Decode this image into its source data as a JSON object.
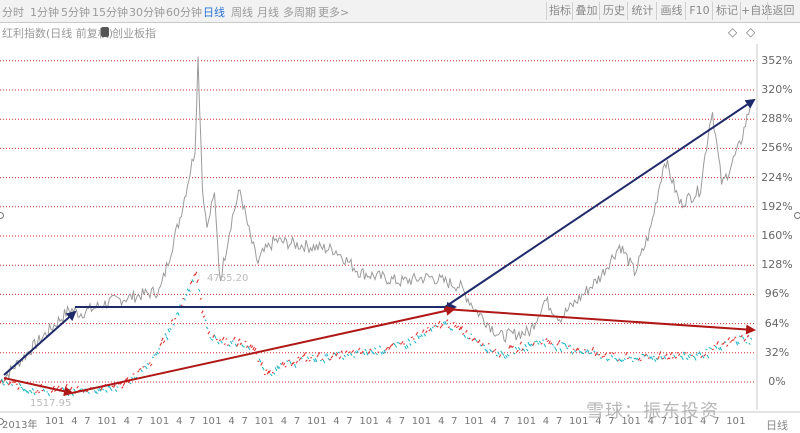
{
  "periods": [
    {
      "label": "分时",
      "active": false
    },
    {
      "label": "1分钟",
      "active": false
    },
    {
      "label": "5分钟",
      "active": false
    },
    {
      "label": "15分钟",
      "active": false
    },
    {
      "label": "30分钟",
      "active": false
    },
    {
      "label": "60分钟",
      "active": false
    },
    {
      "label": "日线",
      "active": true
    },
    {
      "label": "周线",
      "active": false
    },
    {
      "label": "月线",
      "active": false
    },
    {
      "label": "多周期",
      "active": false
    },
    {
      "label": "更多>",
      "active": false
    }
  ],
  "right_buttons": [
    "指标",
    "叠加",
    "历史",
    "统计",
    "画线",
    "F10",
    "标记",
    "+自选",
    "返回"
  ],
  "subtitle": "红利指数(日线 前复权)",
  "overlay_label": "创业板指",
  "nav_left": "◇",
  "nav_right": "◇",
  "y_axis": [
    "352%",
    "320%",
    "288%",
    "256%",
    "224%",
    "192%",
    "160%",
    "128%",
    "96%",
    "64%",
    "32%",
    "0%"
  ],
  "price_high": "4765.20",
  "price_low": "1517.95",
  "x_axis": {
    "year_label": "2013年",
    "labels": [
      "10",
      "1",
      "4",
      "7",
      "10",
      "1",
      "4",
      "7",
      "10",
      "1",
      "4",
      "7",
      "10",
      "1",
      "4",
      "7",
      "10",
      "1",
      "4",
      "7",
      "10",
      "1",
      "4",
      "7",
      "10",
      "1",
      "4",
      "7",
      "10",
      "1",
      "4",
      "7",
      "10",
      "1",
      "4",
      "7",
      "10",
      "1",
      "4",
      "7",
      "10",
      "1",
      "4",
      "7",
      "10",
      "1",
      "4",
      "7",
      "10",
      "1",
      "4",
      "7",
      "10",
      "1",
      "4",
      "7"
    ]
  },
  "period_label": "日线",
  "watermark": "雪球：振东投资",
  "colors": {
    "gray_series": "#9b9b9b",
    "dividend_up": "#e03030",
    "dividend_down": "#25b8c8",
    "arrow_blue": "#1f2a6b",
    "arrow_red": "#b01818",
    "grid": "#d32a2a",
    "active_tab": "#2d74d6"
  },
  "icons": {
    "chip": "square-chip-icon"
  },
  "chart_data": {
    "type": "line",
    "ylabel": "",
    "ylim": [
      -6,
      370
    ],
    "y_ticks": [
      0,
      32,
      64,
      96,
      128,
      160,
      192,
      224,
      256,
      288,
      320,
      352
    ],
    "series": [
      {
        "name": "创业板指",
        "anchors": [
          [
            0,
            0
          ],
          [
            30,
            35
          ],
          [
            70,
            80
          ],
          [
            80,
            75
          ],
          [
            110,
            88
          ],
          [
            160,
            100
          ],
          [
            180,
            180
          ],
          [
            195,
            255
          ],
          [
            198,
            355
          ],
          [
            203,
            200
          ],
          [
            208,
            170
          ],
          [
            214,
            210
          ],
          [
            220,
            110
          ],
          [
            232,
            180
          ],
          [
            240,
            210
          ],
          [
            250,
            160
          ],
          [
            258,
            130
          ],
          [
            262,
            140
          ],
          [
            275,
            155
          ],
          [
            300,
            150
          ],
          [
            335,
            145
          ],
          [
            360,
            120
          ],
          [
            400,
            110
          ],
          [
            430,
            115
          ],
          [
            460,
            105
          ],
          [
            475,
            80
          ],
          [
            500,
            50
          ],
          [
            530,
            55
          ],
          [
            545,
            90
          ],
          [
            560,
            70
          ],
          [
            600,
            115
          ],
          [
            620,
            150
          ],
          [
            635,
            120
          ],
          [
            650,
            165
          ],
          [
            665,
            245
          ],
          [
            680,
            195
          ],
          [
            700,
            210
          ],
          [
            712,
            300
          ],
          [
            722,
            215
          ],
          [
            740,
            260
          ],
          [
            752,
            310
          ]
        ]
      },
      {
        "name": "红利指数",
        "anchors": [
          [
            0,
            0
          ],
          [
            30,
            -8
          ],
          [
            70,
            -10
          ],
          [
            120,
            -5
          ],
          [
            150,
            20
          ],
          [
            170,
            60
          ],
          [
            195,
            120
          ],
          [
            203,
            70
          ],
          [
            210,
            50
          ],
          [
            220,
            45
          ],
          [
            250,
            40
          ],
          [
            265,
            10
          ],
          [
            300,
            25
          ],
          [
            350,
            30
          ],
          [
            400,
            40
          ],
          [
            445,
            65
          ],
          [
            470,
            50
          ],
          [
            500,
            30
          ],
          [
            540,
            45
          ],
          [
            580,
            35
          ],
          [
            620,
            25
          ],
          [
            660,
            28
          ],
          [
            700,
            30
          ],
          [
            740,
            48
          ],
          [
            755,
            45
          ]
        ]
      }
    ],
    "annotations": [
      {
        "text": "4765.20"
      },
      {
        "text": "1517.95"
      }
    ],
    "grid": true
  }
}
